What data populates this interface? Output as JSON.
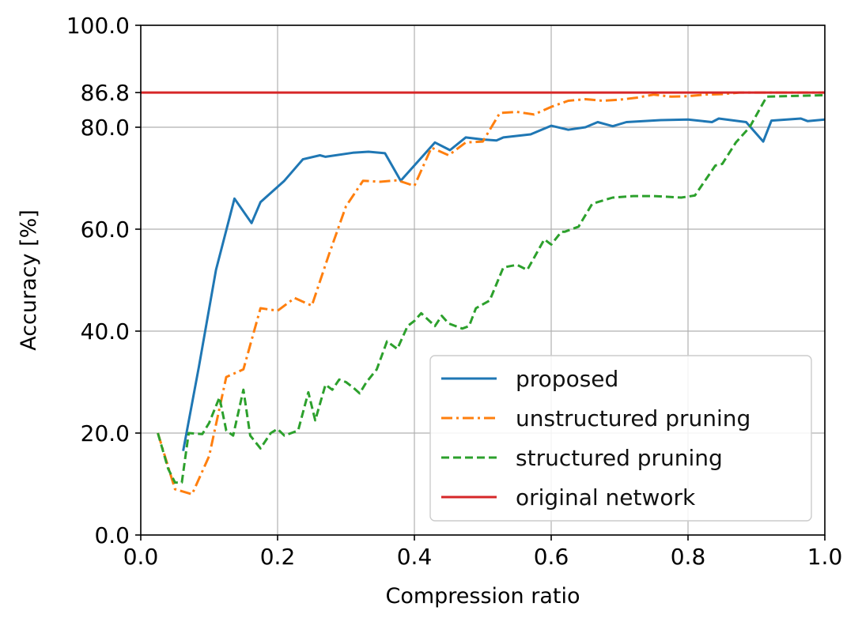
{
  "chart_data": {
    "type": "line",
    "xlabel": "Compression ratio",
    "ylabel": "Accuracy [%]",
    "xlim": [
      0.0,
      1.0
    ],
    "ylim": [
      0.0,
      100.0
    ],
    "xticks": [
      0.0,
      0.2,
      0.4,
      0.6,
      0.8,
      1.0
    ],
    "xtick_labels": [
      "0.0",
      "0.2",
      "0.4",
      "0.6",
      "0.8",
      "1.0"
    ],
    "yticks": [
      0.0,
      20.0,
      40.0,
      60.0,
      80.0,
      86.8,
      100.0
    ],
    "ytick_labels": [
      "0.0",
      "20.0",
      "40.0",
      "60.0",
      "80.0",
      "86.8",
      "100.0"
    ],
    "grid": true,
    "legend_position": "bottom-right",
    "series": [
      {
        "name": "proposed",
        "color": "#1f77b4",
        "dash": "solid",
        "x": [
          0.062,
          0.085,
          0.11,
          0.137,
          0.162,
          0.175,
          0.21,
          0.237,
          0.262,
          0.27,
          0.31,
          0.333,
          0.357,
          0.38,
          0.43,
          0.452,
          0.475,
          0.5,
          0.52,
          0.53,
          0.57,
          0.6,
          0.625,
          0.65,
          0.668,
          0.69,
          0.71,
          0.76,
          0.8,
          0.835,
          0.845,
          0.885,
          0.91,
          0.922,
          0.965,
          0.975,
          1.0
        ],
        "y": [
          16.5,
          33,
          52,
          66,
          61.2,
          65.3,
          69.5,
          73.7,
          74.5,
          74.2,
          75,
          75.2,
          74.9,
          69.5,
          77,
          75.5,
          78,
          77.6,
          77.4,
          78,
          78.6,
          80.3,
          79.5,
          80,
          81,
          80.2,
          81,
          81.4,
          81.5,
          81.0,
          81.7,
          81,
          77.2,
          81.3,
          81.7,
          81.2,
          81.5
        ]
      },
      {
        "name": "unstructured pruning",
        "color": "#ff7f0e",
        "dash": "dashdot",
        "x": [
          0.025,
          0.05,
          0.075,
          0.1,
          0.125,
          0.15,
          0.175,
          0.2,
          0.225,
          0.25,
          0.275,
          0.3,
          0.325,
          0.35,
          0.375,
          0.4,
          0.425,
          0.45,
          0.475,
          0.5,
          0.525,
          0.55,
          0.575,
          0.6,
          0.625,
          0.65,
          0.675,
          0.7,
          0.725,
          0.75,
          0.775,
          0.8,
          0.825,
          0.85,
          0.875,
          0.9,
          0.925,
          0.95,
          0.975,
          1.0
        ],
        "y": [
          20,
          9,
          8,
          15.5,
          31,
          32.5,
          44.5,
          44,
          46.5,
          45,
          55,
          64.5,
          69.5,
          69.3,
          69.6,
          68.5,
          76,
          74.5,
          77,
          77.2,
          82.8,
          83,
          82.5,
          84,
          85.2,
          85.5,
          85.2,
          85.4,
          85.8,
          86.4,
          86.0,
          86.1,
          86.4,
          86.5,
          86.8,
          86.8,
          86.8,
          86.8,
          86.8,
          86.8
        ]
      },
      {
        "name": "structured pruning",
        "color": "#2ca02c",
        "dash": "dashed",
        "x": [
          0.025,
          0.04,
          0.05,
          0.06,
          0.07,
          0.09,
          0.1,
          0.115,
          0.125,
          0.135,
          0.15,
          0.16,
          0.175,
          0.19,
          0.2,
          0.21,
          0.23,
          0.245,
          0.255,
          0.27,
          0.28,
          0.29,
          0.3,
          0.31,
          0.32,
          0.33,
          0.345,
          0.36,
          0.375,
          0.39,
          0.4,
          0.41,
          0.43,
          0.44,
          0.45,
          0.47,
          0.48,
          0.49,
          0.51,
          0.53,
          0.55,
          0.565,
          0.59,
          0.6,
          0.615,
          0.62,
          0.64,
          0.66,
          0.69,
          0.72,
          0.75,
          0.79,
          0.81,
          0.84,
          0.85,
          0.87,
          0.89,
          0.915,
          1.0
        ],
        "y": [
          20,
          13,
          10.3,
          10.3,
          20,
          19.8,
          22,
          27,
          20.5,
          19.5,
          28.5,
          19.5,
          17,
          20,
          20.8,
          19.5,
          20.5,
          28,
          22.5,
          29.5,
          28.5,
          30.5,
          30,
          29,
          27.8,
          30,
          32.5,
          38,
          36.5,
          41,
          42,
          43.5,
          41,
          43,
          41.5,
          40.5,
          41,
          44.5,
          46,
          52.5,
          53,
          52,
          58,
          57,
          59.5,
          59.5,
          60.5,
          65,
          66.2,
          66.5,
          66.5,
          66.2,
          66.6,
          72.5,
          72.8,
          77,
          80,
          86,
          86.3
        ]
      },
      {
        "name": "original network",
        "color": "#d62728",
        "dash": "solid",
        "x": [
          0.0,
          1.0
        ],
        "y": [
          86.8,
          86.8
        ]
      }
    ]
  }
}
